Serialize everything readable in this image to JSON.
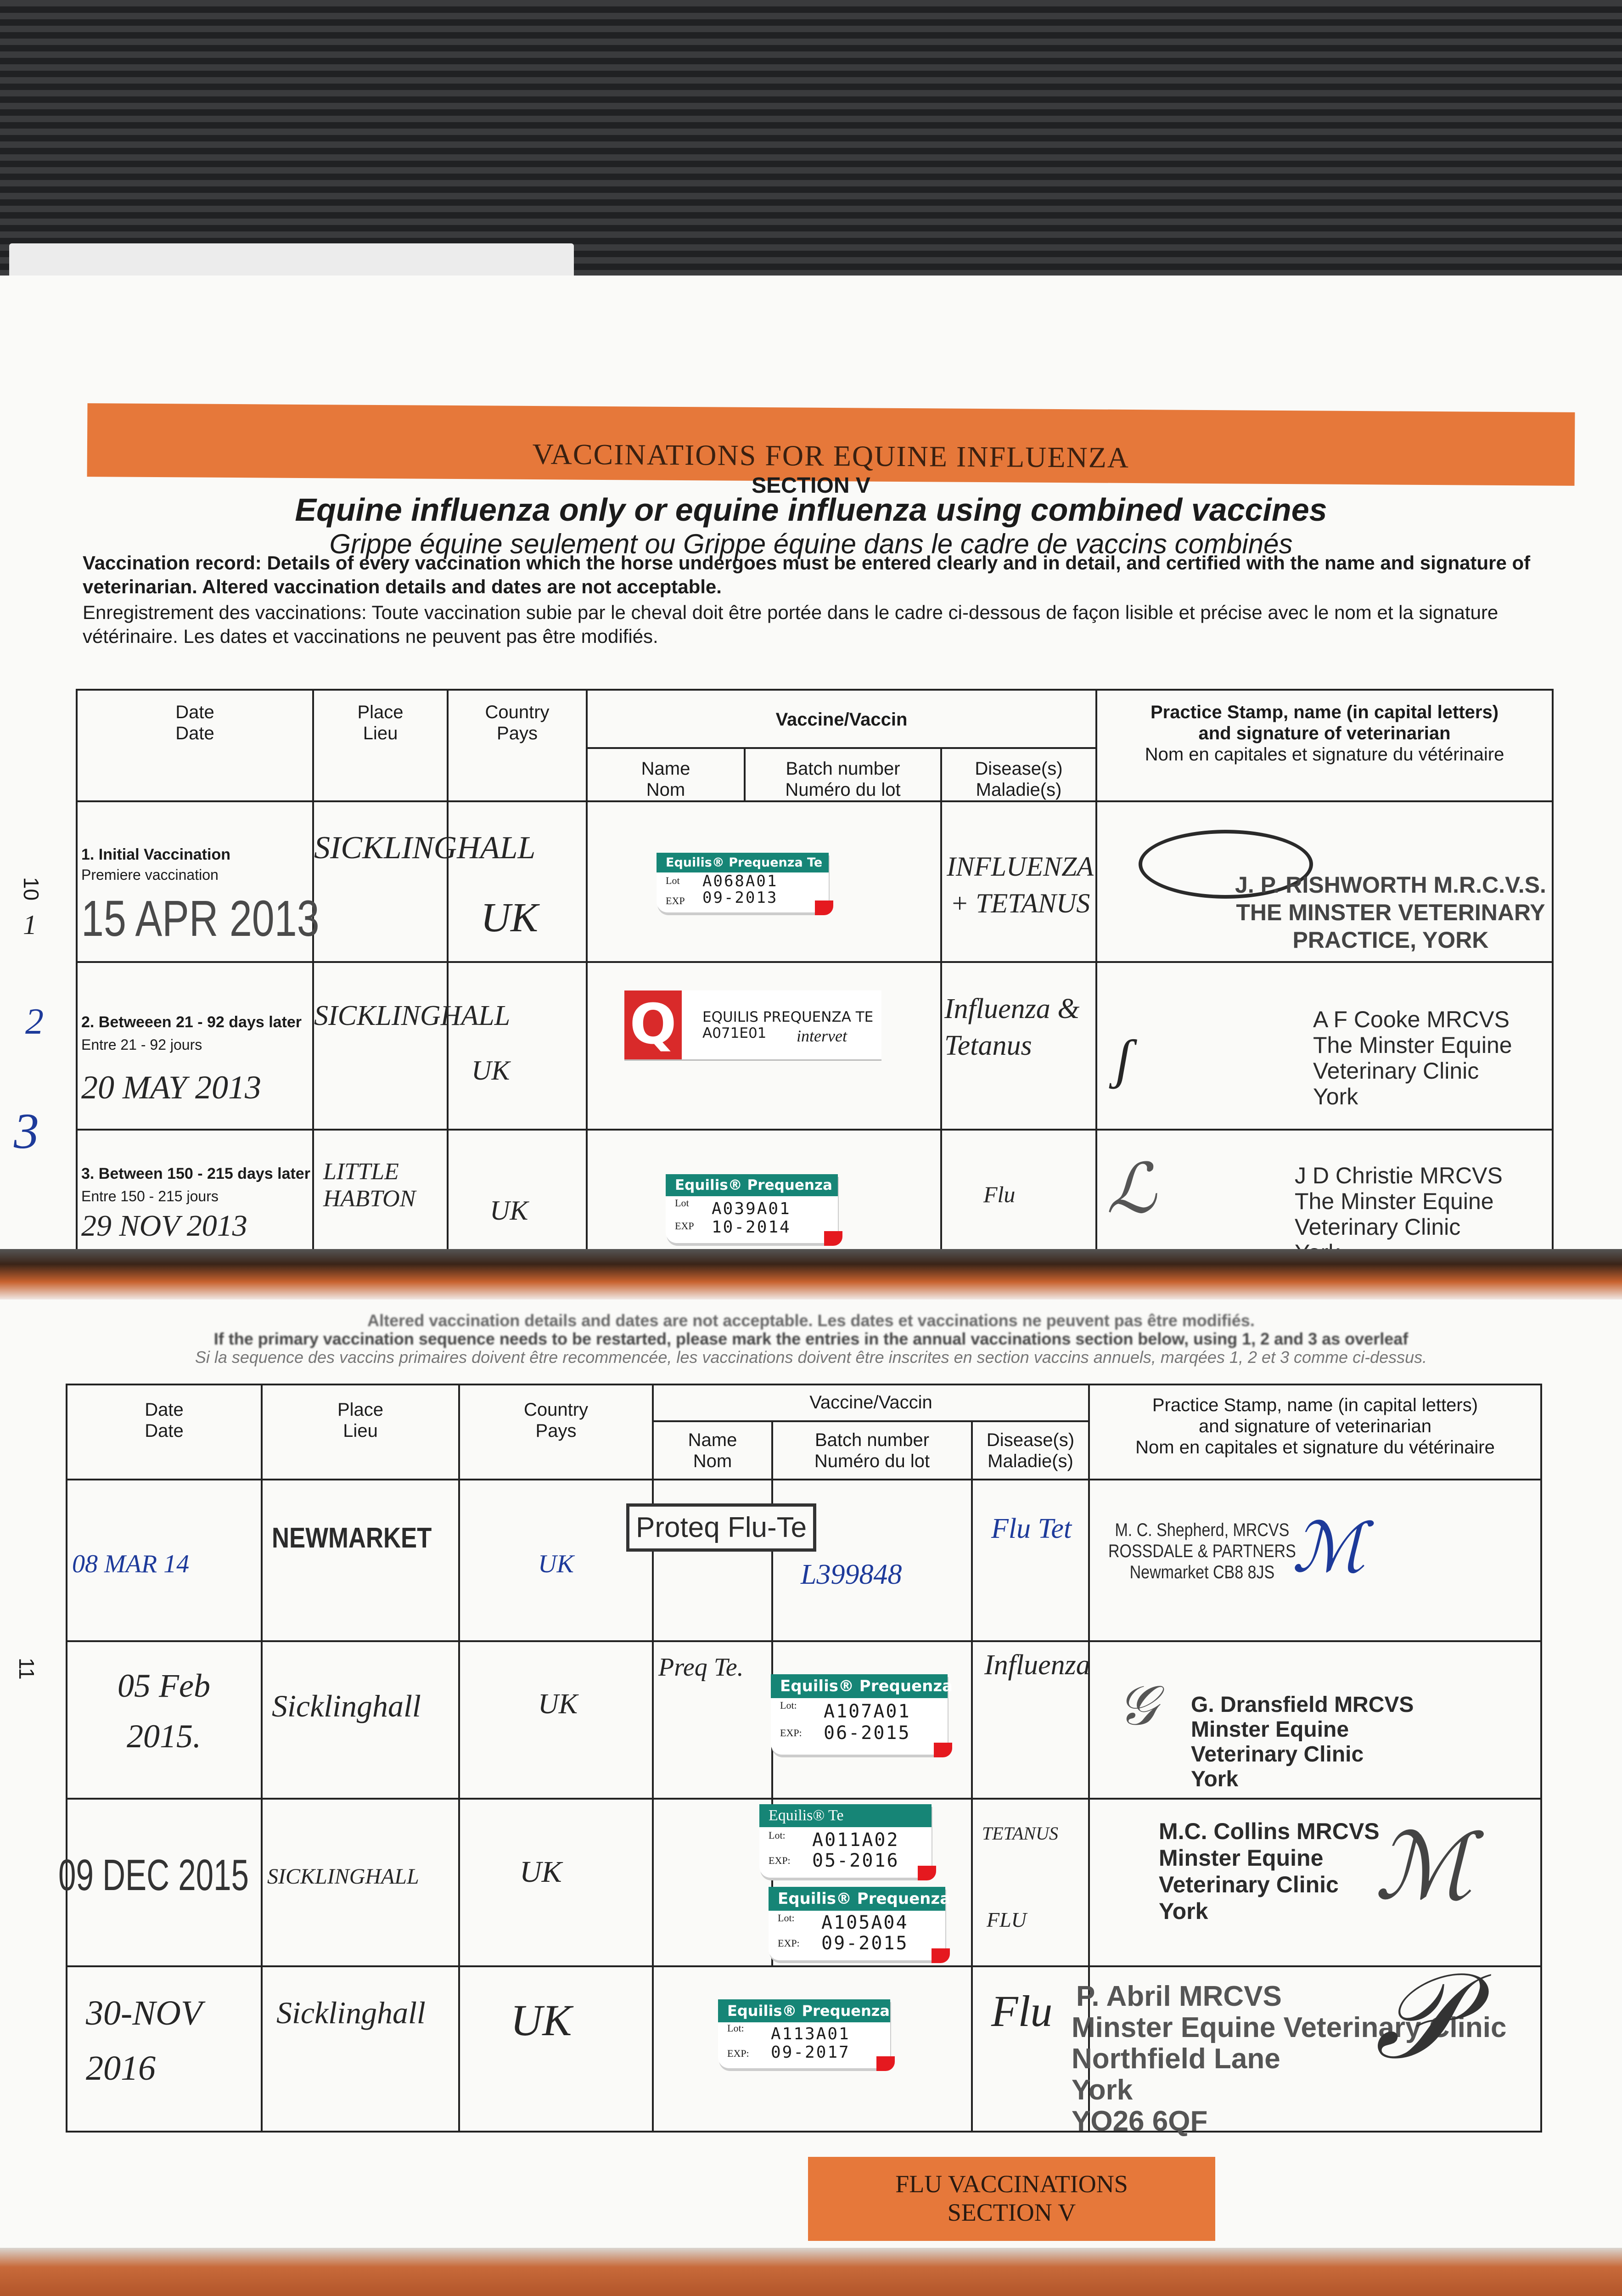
{
  "page1": {
    "page_number": "10",
    "banner": "VACCINATIONS FOR EQUINE INFLUENZA",
    "section": "SECTION V",
    "title": "Equine influenza only or equine influenza using combined vaccines",
    "subtitle": "Grippe équine seulement ou Grippe équine dans le cadre de vaccins combinés",
    "intro_en_bold": "Vaccination record: Details of every vaccination which the horse undergoes must be entered clearly and in detail, and certified with the name and signature of veterinarian. Altered vaccination details and dates are not acceptable.",
    "intro_fr": "Enregistrement des vaccinations: Toute vaccination subie par le cheval doit être portée  dans le cadre ci-dessous de façon lisible et précise avec le nom et la signature vétérinaire. Les dates et vaccinations ne peuvent pas être modifiés.",
    "margin_marks": [
      "1",
      "2",
      "3"
    ]
  },
  "headers": {
    "date": "Date",
    "date_fr": "Date",
    "place": "Place",
    "place_fr": "Lieu",
    "country": "Country",
    "country_fr": "Pays",
    "vaccine": "Vaccine/Vaccin",
    "name": "Name",
    "name_fr": "Nom",
    "batch": "Batch number",
    "batch_fr": "Numéro du lot",
    "disease": "Disease(s)",
    "disease_fr": "Maladie(s)",
    "practice": "Practice Stamp, name (in capital letters)",
    "practice2": "and signature of veterinarian",
    "practice_fr": "Nom en capitales et signature du vétérinaire"
  },
  "primary": [
    {
      "label": "1. Initial Vaccination",
      "label_fr": "Premiere vaccination",
      "date": "15 APR 2013",
      "place": "SICKLINGHALL",
      "country": "UK",
      "sticker": {
        "title": "Equilis® Prequenza Te",
        "lot_label": "Lot",
        "exp_label": "EXP",
        "lot": "A068A01",
        "exp": "09-2013"
      },
      "disease": "INFLUENZA + TETANUS",
      "vet": [
        "J. P. RISHWORTH M.R.C.V.S.",
        "THE MINSTER VETERINARY",
        "PRACTICE, YORK"
      ]
    },
    {
      "label": "2. Betweeen 21 - 92 days later",
      "label_fr": "Entre 21 - 92 jours",
      "date": "20 MAY 2013",
      "place": "SICKLINGHALL",
      "country": "UK",
      "sticker": {
        "logo": "Q",
        "title": "EQUILIS PREQUENZA TE",
        "lot": "A071E01",
        "brand": "intervet"
      },
      "disease": "Influenza & Tetanus",
      "vet": [
        "A F Cooke MRCVS",
        "The Minster Equine",
        "Veterinary Clinic",
        "York"
      ]
    },
    {
      "label": "3. Between 150 - 215  days later",
      "label_fr": "Entre 150 - 215 jours",
      "date": "29 NOV 2013",
      "place": "LITTLE HABTON",
      "country": "UK",
      "sticker": {
        "title": "Equilis® Prequenza",
        "lot_label": "Lot",
        "exp_label": "EXP",
        "lot": "A039A01",
        "exp": "10-2014"
      },
      "disease": "Flu",
      "vet": [
        "J D Christie MRCVS",
        "The Minster Equine",
        "Veterinary Clinic",
        "York"
      ]
    }
  ],
  "page2": {
    "page_number": "11",
    "instr1": "Altered vaccination details and dates are not acceptable. Les dates et vaccinations ne peuvent pas être modifiés.",
    "instr2": "If the primary vaccination sequence needs to be restarted, please mark the entries in the annual vaccinations section below, using 1, 2 and 3 as overleaf",
    "instr3": "Si la sequence des vaccins primaires doivent être recommencée, les vaccinations doivent être inscrites en section vaccins annuels, marqées 1, 2 et 3 comme ci-dessus.",
    "footer_line1": "FLU VACCINATIONS",
    "footer_line2": "SECTION V"
  },
  "annual": [
    {
      "date": "08 MAR 14",
      "place": "NEWMARKET",
      "country": "UK",
      "name": "Proteq Flu-Te",
      "batch": "L399848",
      "disease": "Flu Tet",
      "vet": [
        "M. C. Shepherd, MRCVS",
        "ROSSDALE & PARTNERS",
        "Newmarket CB8 8JS"
      ]
    },
    {
      "date": "05 Feb 2015.",
      "place": "Sicklinghall",
      "country": "UK",
      "name": "Preq Te.",
      "disease": "Influenza",
      "stickers": [
        {
          "title": "Equilis® Prequenza",
          "lot_label": "Lot:",
          "exp_label": "EXP:",
          "lot": "A107A01",
          "exp": "06-2015"
        }
      ],
      "vet": [
        "G. Dransfield MRCVS",
        "Minster Equine",
        "Veterinary Clinic",
        "York"
      ]
    },
    {
      "date": "09 DEC 2015",
      "place": "SICKLINGHALL",
      "country": "UK",
      "disease": "TETANUS",
      "disease2": "FLU",
      "stickers": [
        {
          "title": "Equilis® Te",
          "lot_label": "Lot:",
          "exp_label": "EXP:",
          "lot": "A011A02",
          "exp": "05-2016"
        },
        {
          "title": "Equilis® Prequenza",
          "lot_label": "Lot:",
          "exp_label": "EXP:",
          "lot": "A105A04",
          "exp": "09-2015"
        }
      ],
      "vet": [
        "M.C. Collins MRCVS",
        "Minster Equine",
        "Veterinary Clinic",
        "York"
      ]
    },
    {
      "date": "30-NOV 2016",
      "place": "Sicklinghall",
      "country": "UK",
      "disease": "Flu",
      "stickers": [
        {
          "title": "Equilis® Prequenza",
          "lot_label": "Lot:",
          "exp_label": "EXP:",
          "lot": "A113A01",
          "exp": "09-2017"
        }
      ],
      "vet": [
        "P. Abril MRCVS",
        "Minster Equine Veterinary Clinic",
        "Northfield Lane",
        "York",
        "YO26 6QF"
      ]
    }
  ],
  "colors": {
    "banner": "#e6783a",
    "sticker_teal": "#168576",
    "sticker_red": "#e5191f",
    "q_logo": "#d92a2a",
    "ink_blue": "#1d3a9a"
  }
}
